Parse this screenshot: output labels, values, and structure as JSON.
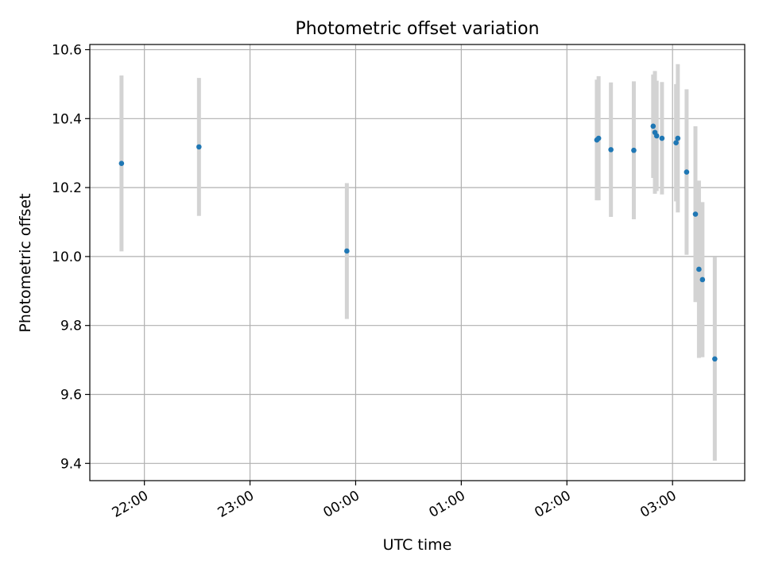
{
  "chart_data": {
    "type": "scatter",
    "title": "Photometric offset variation",
    "xlabel": "UTC time",
    "ylabel": "Photometric offset",
    "x_tick_labels": [
      "22:00",
      "23:00",
      "00:00",
      "01:00",
      "02:00",
      "03:00"
    ],
    "y_tick_labels": [
      "9.4",
      "9.6",
      "9.8",
      "10.0",
      "10.2",
      "10.4",
      "10.6"
    ],
    "xlim": [
      "21:29",
      "03:41"
    ],
    "ylim": [
      9.35,
      10.615
    ],
    "grid": true,
    "colors": {
      "point": "#1f77b4",
      "errorbar": "#d3d3d3",
      "grid": "#b0b0b0"
    },
    "points": [
      {
        "x": "21:47",
        "y": 10.27,
        "yerr": 0.255
      },
      {
        "x": "22:31",
        "y": 10.318,
        "yerr": 0.2
      },
      {
        "x": "23:55",
        "y": 10.016,
        "yerr": 0.197
      },
      {
        "x": "02:17",
        "y": 10.338,
        "yerr": 0.175
      },
      {
        "x": "02:18",
        "y": 10.343,
        "yerr": 0.18
      },
      {
        "x": "02:25",
        "y": 10.31,
        "yerr": 0.195
      },
      {
        "x": "02:38",
        "y": 10.308,
        "yerr": 0.2
      },
      {
        "x": "02:49",
        "y": 10.378,
        "yerr": 0.15
      },
      {
        "x": "02:50",
        "y": 10.36,
        "yerr": 0.178
      },
      {
        "x": "02:51",
        "y": 10.35,
        "yerr": 0.16
      },
      {
        "x": "02:54",
        "y": 10.343,
        "yerr": 0.163
      },
      {
        "x": "03:02",
        "y": 10.33,
        "yerr": 0.17
      },
      {
        "x": "03:03",
        "y": 10.343,
        "yerr": 0.215
      },
      {
        "x": "03:08",
        "y": 10.245,
        "yerr": 0.24
      },
      {
        "x": "03:13",
        "y": 10.123,
        "yerr": 0.255
      },
      {
        "x": "03:15",
        "y": 9.963,
        "yerr": 0.257
      },
      {
        "x": "03:17",
        "y": 9.933,
        "yerr": 0.225
      },
      {
        "x": "03:24",
        "y": 9.703,
        "yerr": 0.295
      }
    ]
  }
}
